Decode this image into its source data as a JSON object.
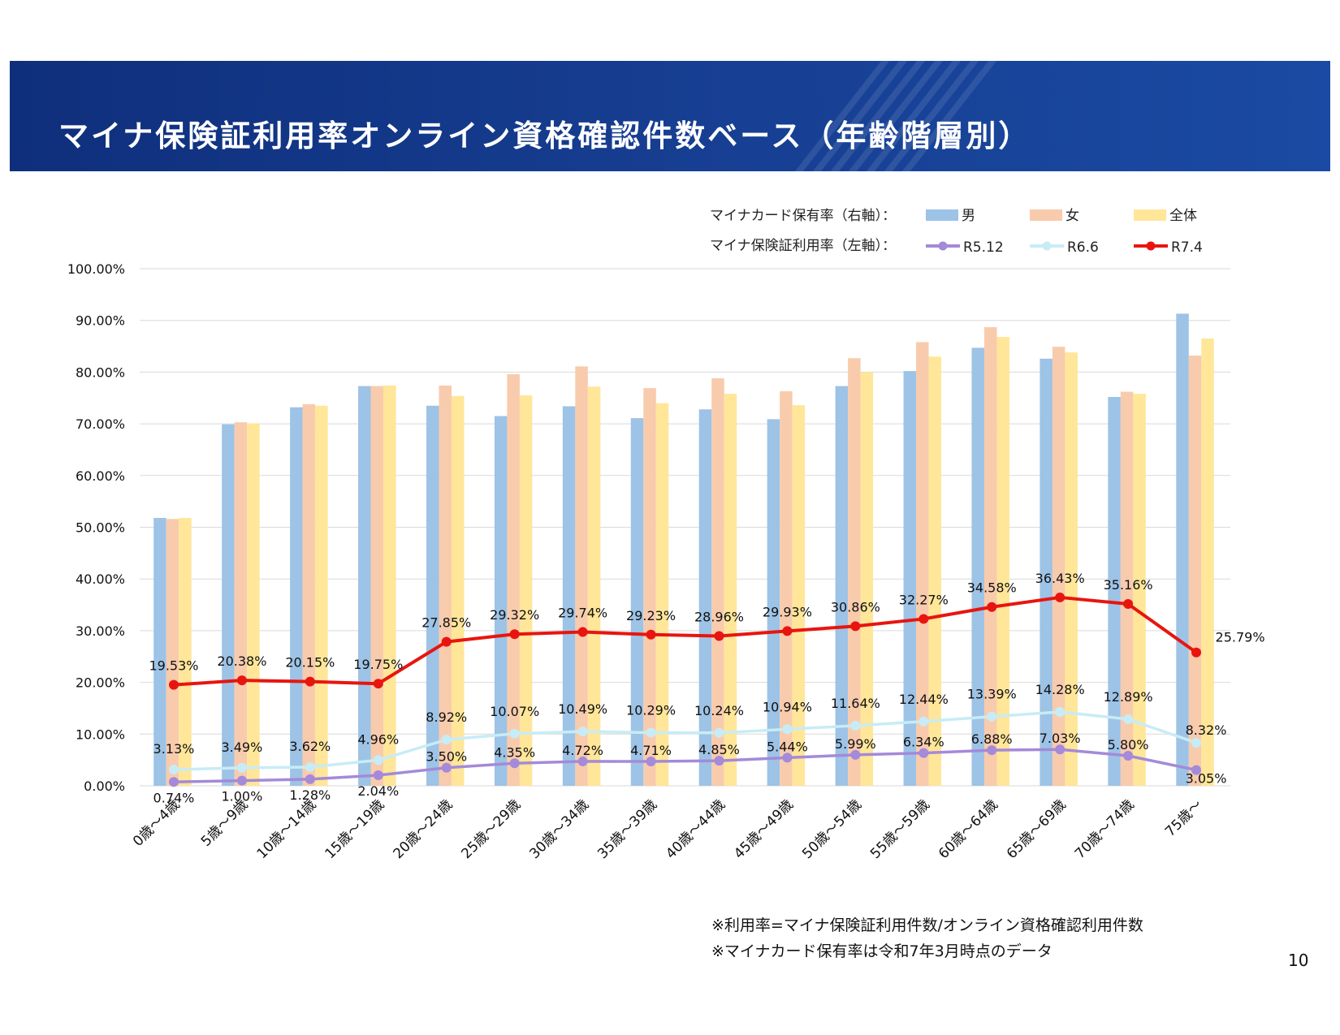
{
  "title": "マイナ保険証利用率オンライン資格確認件数ベース（年齢階層別）",
  "legend": {
    "bar_group_label": "マイナカード保有率（右軸）：",
    "line_group_label": "マイナ保険証利用率（左軸）：",
    "bars": [
      {
        "name": "男",
        "color": "#9dc3e6"
      },
      {
        "name": "女",
        "color": "#f8cbad"
      },
      {
        "name": "全体",
        "color": "#ffe699"
      }
    ],
    "lines": [
      {
        "name": "R5.12",
        "color": "#a48ad8"
      },
      {
        "name": "R6.6",
        "color": "#c8ecf6"
      },
      {
        "name": "R7.4",
        "color": "#e8150f"
      }
    ]
  },
  "notes": [
    "※利用率=マイナ保険証利用件数/オンライン資格確認利用件数",
    "※マイナカード保有率は令和7年3月時点のデータ"
  ],
  "page_number": "10",
  "chart_data": {
    "type": "bar",
    "categories": [
      "0歳～4歳",
      "5歳～9歳",
      "10歳～14歳",
      "15歳～19歳",
      "20歳～24歳",
      "25歳～29歳",
      "30歳～34歳",
      "35歳～39歳",
      "40歳～44歳",
      "45歳～49歳",
      "50歳～54歳",
      "55歳～59歳",
      "60歳～64歳",
      "65歳～69歳",
      "70歳～74歳",
      "75歳～"
    ],
    "y_ticks": [
      "100.00%",
      "90.00%",
      "80.00%",
      "70.00%",
      "60.00%",
      "50.00%",
      "40.00%",
      "30.00%",
      "20.00%",
      "10.00%",
      "0.00%"
    ],
    "ylim": [
      0,
      100
    ],
    "grid": true,
    "bar_series": [
      {
        "name": "男",
        "color": "#9dc3e6",
        "values": [
          51.8,
          69.9,
          73.2,
          77.3,
          73.5,
          71.5,
          73.4,
          71.1,
          72.8,
          70.9,
          77.3,
          80.2,
          84.7,
          82.6,
          75.2,
          91.3
        ]
      },
      {
        "name": "女",
        "color": "#f8cbad",
        "values": [
          51.6,
          70.3,
          73.8,
          77.3,
          77.4,
          79.6,
          81.1,
          76.9,
          78.8,
          76.3,
          82.7,
          85.8,
          88.7,
          84.9,
          76.2,
          83.2
        ]
      },
      {
        "name": "全体",
        "color": "#ffe699",
        "values": [
          51.8,
          70.1,
          73.5,
          77.4,
          75.4,
          75.5,
          77.2,
          74.0,
          75.8,
          73.6,
          80.0,
          83.0,
          86.8,
          83.8,
          75.8,
          86.5
        ]
      }
    ],
    "line_series": [
      {
        "name": "R5.12",
        "color": "#a48ad8",
        "values": [
          0.74,
          1.0,
          1.28,
          2.04,
          3.5,
          4.35,
          4.72,
          4.71,
          4.85,
          5.44,
          5.99,
          6.34,
          6.88,
          7.03,
          5.8,
          3.05
        ],
        "labels": [
          "0.74%",
          "1.00%",
          "1.28%",
          "2.04%",
          "3.50%",
          "4.35%",
          "4.72%",
          "4.71%",
          "4.85%",
          "5.44%",
          "5.99%",
          "6.34%",
          "6.88%",
          "7.03%",
          "5.80%",
          "3.05%"
        ]
      },
      {
        "name": "R6.6",
        "color": "#c8ecf6",
        "values": [
          3.13,
          3.49,
          3.62,
          4.96,
          8.92,
          10.07,
          10.49,
          10.29,
          10.24,
          10.94,
          11.64,
          12.44,
          13.39,
          14.28,
          12.89,
          8.32
        ],
        "labels": [
          "3.13%",
          "3.49%",
          "3.62%",
          "4.96%",
          "8.92%",
          "10.07%",
          "10.49%",
          "10.29%",
          "10.24%",
          "10.94%",
          "11.64%",
          "12.44%",
          "13.39%",
          "14.28%",
          "12.89%",
          "8.32%"
        ]
      },
      {
        "name": "R7.4",
        "color": "#e8150f",
        "values": [
          19.53,
          20.38,
          20.15,
          19.75,
          27.85,
          29.32,
          29.74,
          29.23,
          28.96,
          29.93,
          30.86,
          32.27,
          34.58,
          36.43,
          35.16,
          25.79
        ],
        "labels": [
          "19.53%",
          "20.38%",
          "20.15%",
          "19.75%",
          "27.85%",
          "29.32%",
          "29.74%",
          "29.23%",
          "28.96%",
          "29.93%",
          "30.86%",
          "32.27%",
          "34.58%",
          "36.43%",
          "35.16%",
          "25.79%"
        ]
      }
    ]
  }
}
